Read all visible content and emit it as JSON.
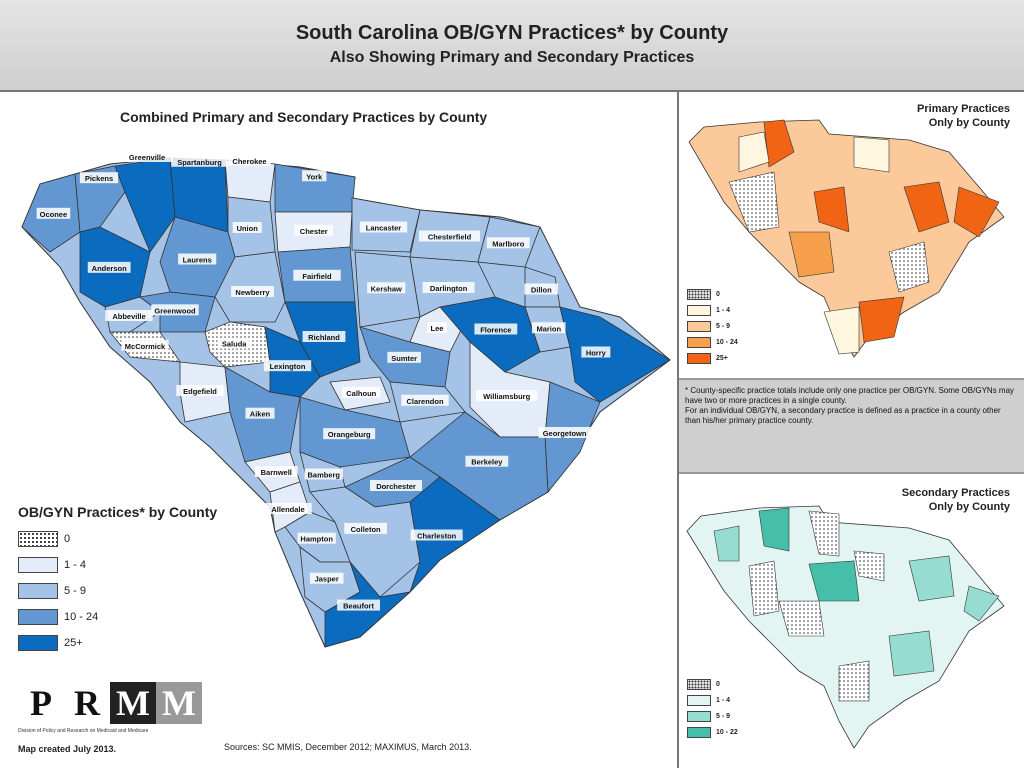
{
  "header": {
    "title": "South Carolina OB/GYN Practices* by County",
    "subtitle": "Also Showing Primary and Secondary Practices"
  },
  "main_map": {
    "title": "Combined Primary and Secondary Practices by County",
    "counties": [
      {
        "name": "Oconee",
        "bin": "10 - 24"
      },
      {
        "name": "Pickens",
        "bin": "10 - 24"
      },
      {
        "name": "Greenville",
        "bin": "25+"
      },
      {
        "name": "Spartanburg",
        "bin": "25+"
      },
      {
        "name": "Cherokee",
        "bin": "1 - 4"
      },
      {
        "name": "York",
        "bin": "10 - 24"
      },
      {
        "name": "Anderson",
        "bin": "25+"
      },
      {
        "name": "Union",
        "bin": "5 - 9"
      },
      {
        "name": "Chester",
        "bin": "1 - 4"
      },
      {
        "name": "Lancaster",
        "bin": "5 - 9"
      },
      {
        "name": "Chesterfield",
        "bin": "5 - 9"
      },
      {
        "name": "Marlboro",
        "bin": "5 - 9"
      },
      {
        "name": "Laurens",
        "bin": "10 - 24"
      },
      {
        "name": "Fairfield",
        "bin": "10 - 24"
      },
      {
        "name": "Dillon",
        "bin": "5 - 9"
      },
      {
        "name": "Abbeville",
        "bin": "5 - 9"
      },
      {
        "name": "Newberry",
        "bin": "5 - 9"
      },
      {
        "name": "Kershaw",
        "bin": "5 - 9"
      },
      {
        "name": "Darlington",
        "bin": "5 - 9"
      },
      {
        "name": "Greenwood",
        "bin": "10 - 24"
      },
      {
        "name": "Lee",
        "bin": "1 - 4"
      },
      {
        "name": "Marion",
        "bin": "5 - 9"
      },
      {
        "name": "McCormick",
        "bin": "0"
      },
      {
        "name": "Saluda",
        "bin": "0"
      },
      {
        "name": "Richland",
        "bin": "25+"
      },
      {
        "name": "Florence",
        "bin": "25+"
      },
      {
        "name": "Horry",
        "bin": "25+"
      },
      {
        "name": "Lexington",
        "bin": "25+"
      },
      {
        "name": "Sumter",
        "bin": "10 - 24"
      },
      {
        "name": "Edgefield",
        "bin": "1 - 4"
      },
      {
        "name": "Calhoun",
        "bin": "1 - 4"
      },
      {
        "name": "Clarendon",
        "bin": "5 - 9"
      },
      {
        "name": "Williamsburg",
        "bin": "1 - 4"
      },
      {
        "name": "Aiken",
        "bin": "10 - 24"
      },
      {
        "name": "Orangeburg",
        "bin": "10 - 24"
      },
      {
        "name": "Georgetown",
        "bin": "10 - 24"
      },
      {
        "name": "Barnwell",
        "bin": "1 - 4"
      },
      {
        "name": "Bamberg",
        "bin": "5 - 9"
      },
      {
        "name": "Dorchester",
        "bin": "10 - 24"
      },
      {
        "name": "Berkeley",
        "bin": "10 - 24"
      },
      {
        "name": "Allendale",
        "bin": "1 - 4"
      },
      {
        "name": "Colleton",
        "bin": "5 - 9"
      },
      {
        "name": "Hampton",
        "bin": "5 - 9"
      },
      {
        "name": "Charleston",
        "bin": "25+"
      },
      {
        "name": "Jasper",
        "bin": "5 - 9"
      },
      {
        "name": "Beaufort",
        "bin": "25+"
      }
    ]
  },
  "legend": {
    "title": "OB/GYN Practices* by County",
    "items": [
      {
        "label": "0",
        "color": "dots"
      },
      {
        "label": "1 - 4",
        "color": "#e3ecf8"
      },
      {
        "label": "5 - 9",
        "color": "#a4c3e6"
      },
      {
        "label": "10 - 24",
        "color": "#6397d2"
      },
      {
        "label": "25+",
        "color": "#0b6bbf"
      }
    ]
  },
  "logo": {
    "letters": [
      "P",
      "R",
      "M",
      "M"
    ],
    "subtitle": "Division of Policy and Research on Medicaid and Medicare"
  },
  "map_created": "Map created July 2013.",
  "sources": "Sources: SC MMIS, December 2012; MAXIMUS, March 2013.",
  "primary": {
    "title_line1": "Primary Practices",
    "title_line2": "Only by County",
    "legend": [
      {
        "label": "0",
        "color": "dots"
      },
      {
        "label": "1 - 4",
        "color": "#fff6e0"
      },
      {
        "label": "5 - 9",
        "color": "#fcc99a"
      },
      {
        "label": "10 - 24",
        "color": "#f7a04c"
      },
      {
        "label": "25+",
        "color": "#f06414"
      }
    ]
  },
  "note": {
    "line1": "* County-specific practice totals include only one practice per OB/GYN.  Some OB/GYNs may have two or more practices in a single county.",
    "line2": "For an individual OB/GYN, a secondary practice is defined as a practice in a county other than his/her primary practice county."
  },
  "secondary": {
    "title_line1": "Secondary Practices",
    "title_line2": "Only by County",
    "legend": [
      {
        "label": "0",
        "color": "dots"
      },
      {
        "label": "1 - 4",
        "color": "#e3f5f2"
      },
      {
        "label": "5 - 9",
        "color": "#97dcd0"
      },
      {
        "label": "10 - 22",
        "color": "#45bfa9"
      }
    ]
  }
}
